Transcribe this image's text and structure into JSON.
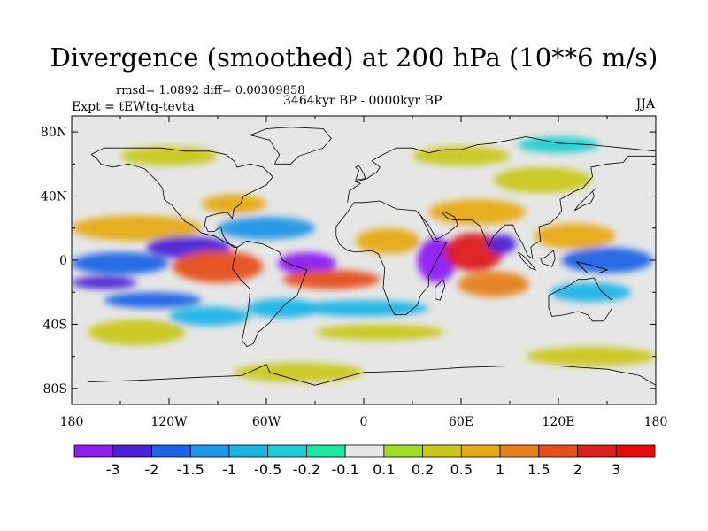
{
  "header": {
    "title": "Divergence (smoothed) at 200 hPa (10**6 m/s)",
    "stats": "rmsd= 1.0892 diff= 0.00309858",
    "experiment": "Expt = tEWtq-tevta",
    "period": "3464kyr BP - 0000kyr BP",
    "season": "JJA"
  },
  "map": {
    "lat_ticks": [
      "80N",
      "40N",
      "0",
      "40S",
      "80S"
    ],
    "lon_ticks": [
      "180",
      "120W",
      "60W",
      "0",
      "60E",
      "120E",
      "180"
    ],
    "background_color": "#e6e6e6"
  },
  "colorbar": {
    "labels": [
      "-3",
      "-2",
      "-1.5",
      "-1",
      "-0.5",
      "-0.2",
      "-0.1",
      "0.1",
      "0.2",
      "0.5",
      "1",
      "1.5",
      "2",
      "3"
    ],
    "colors": [
      "#8d1eee",
      "#4c21d6",
      "#1e64e6",
      "#1e96e6",
      "#1eb4e6",
      "#1ecdd2",
      "#1ee6a0",
      "#e6e6e6",
      "#a0dc28",
      "#c8c81e",
      "#e6aa14",
      "#e6821e",
      "#e6501e",
      "#dc1e1e",
      "#e60a0a"
    ]
  },
  "blobs": [
    {
      "lon": -150,
      "lat": -2,
      "rx": 30,
      "ry": 7,
      "v": -1.6
    },
    {
      "lon": -140,
      "lat": 20,
      "rx": 40,
      "ry": 8,
      "v": 0.6
    },
    {
      "lon": -108,
      "lat": 8,
      "rx": 26,
      "ry": 7,
      "v": -2.6
    },
    {
      "lon": -160,
      "lat": -14,
      "rx": 20,
      "ry": 4,
      "v": -2.6
    },
    {
      "lon": -130,
      "lat": -25,
      "rx": 30,
      "ry": 5,
      "v": -1.8
    },
    {
      "lon": -90,
      "lat": -4,
      "rx": 28,
      "ry": 10,
      "v": 1.8
    },
    {
      "lon": -140,
      "lat": -45,
      "rx": 30,
      "ry": 8,
      "v": 0.4
    },
    {
      "lon": -95,
      "lat": -35,
      "rx": 25,
      "ry": 6,
      "v": -0.5
    },
    {
      "lon": -60,
      "lat": 20,
      "rx": 30,
      "ry": 7,
      "v": -1.0
    },
    {
      "lon": -80,
      "lat": 35,
      "rx": 20,
      "ry": 6,
      "v": 0.7
    },
    {
      "lon": -35,
      "lat": -2,
      "rx": 18,
      "ry": 7,
      "v": -3.2
    },
    {
      "lon": -20,
      "lat": -12,
      "rx": 30,
      "ry": 6,
      "v": 1.6
    },
    {
      "lon": -50,
      "lat": -30,
      "rx": 22,
      "ry": 6,
      "v": -0.8
    },
    {
      "lon": 15,
      "lat": 12,
      "rx": 20,
      "ry": 8,
      "v": 0.8
    },
    {
      "lon": 0,
      "lat": -30,
      "rx": 40,
      "ry": 5,
      "v": -0.8
    },
    {
      "lon": 10,
      "lat": -45,
      "rx": 40,
      "ry": 5,
      "v": 0.5
    },
    {
      "lon": 45,
      "lat": 0,
      "rx": 12,
      "ry": 14,
      "v": -3.0
    },
    {
      "lon": 68,
      "lat": 5,
      "rx": 18,
      "ry": 12,
      "v": 2.8
    },
    {
      "lon": 85,
      "lat": 10,
      "rx": 9,
      "ry": 6,
      "v": -2.2
    },
    {
      "lon": 70,
      "lat": 30,
      "rx": 30,
      "ry": 8,
      "v": 1.0
    },
    {
      "lon": 80,
      "lat": -15,
      "rx": 22,
      "ry": 8,
      "v": 1.2
    },
    {
      "lon": 150,
      "lat": 0,
      "rx": 28,
      "ry": 8,
      "v": -1.8
    },
    {
      "lon": 130,
      "lat": 15,
      "rx": 25,
      "ry": 8,
      "v": 0.9
    },
    {
      "lon": 140,
      "lat": -20,
      "rx": 25,
      "ry": 6,
      "v": -0.8
    },
    {
      "lon": 110,
      "lat": 50,
      "rx": 30,
      "ry": 8,
      "v": 0.4
    },
    {
      "lon": 60,
      "lat": 65,
      "rx": 30,
      "ry": 6,
      "v": 0.3
    },
    {
      "lon": -120,
      "lat": 65,
      "rx": 30,
      "ry": 6,
      "v": 0.4
    },
    {
      "lon": 120,
      "lat": 72,
      "rx": 25,
      "ry": 5,
      "v": -0.4
    },
    {
      "lon": -40,
      "lat": -70,
      "rx": 40,
      "ry": 6,
      "v": 0.4
    },
    {
      "lon": 140,
      "lat": -60,
      "rx": 40,
      "ry": 6,
      "v": 0.3
    }
  ],
  "coastlines": [
    [
      [
        -168,
        66
      ],
      [
        -160,
        70
      ],
      [
        -140,
        70
      ],
      [
        -125,
        70
      ],
      [
        -110,
        68
      ],
      [
        -95,
        68
      ],
      [
        -85,
        66
      ],
      [
        -80,
        62
      ],
      [
        -78,
        58
      ],
      [
        -70,
        60
      ],
      [
        -62,
        58
      ],
      [
        -56,
        52
      ],
      [
        -60,
        47
      ],
      [
        -66,
        44
      ],
      [
        -70,
        42
      ],
      [
        -74,
        40
      ],
      [
        -76,
        35
      ],
      [
        -80,
        32
      ],
      [
        -81,
        26
      ],
      [
        -84,
        30
      ],
      [
        -90,
        29
      ],
      [
        -97,
        27
      ],
      [
        -98,
        22
      ],
      [
        -96,
        18
      ],
      [
        -92,
        18
      ],
      [
        -88,
        21
      ],
      [
        -87,
        16
      ],
      [
        -84,
        11
      ],
      [
        -80,
        8
      ],
      [
        -78,
        8
      ],
      [
        -85,
        11
      ],
      [
        -92,
        15
      ],
      [
        -100,
        17
      ],
      [
        -106,
        22
      ],
      [
        -110,
        24
      ],
      [
        -115,
        30
      ],
      [
        -118,
        34
      ],
      [
        -123,
        38
      ],
      [
        -124,
        45
      ],
      [
        -128,
        50
      ],
      [
        -135,
        57
      ],
      [
        -145,
        60
      ],
      [
        -155,
        58
      ],
      [
        -162,
        60
      ],
      [
        -165,
        64
      ],
      [
        -168,
        66
      ]
    ],
    [
      [
        -78,
        8
      ],
      [
        -72,
        12
      ],
      [
        -62,
        10
      ],
      [
        -52,
        5
      ],
      [
        -50,
        0
      ],
      [
        -44,
        -3
      ],
      [
        -35,
        -6
      ],
      [
        -38,
        -14
      ],
      [
        -41,
        -22
      ],
      [
        -48,
        -27
      ],
      [
        -55,
        -35
      ],
      [
        -58,
        -39
      ],
      [
        -65,
        -45
      ],
      [
        -68,
        -52
      ],
      [
        -72,
        -54
      ],
      [
        -75,
        -50
      ],
      [
        -73,
        -40
      ],
      [
        -71,
        -30
      ],
      [
        -70,
        -18
      ],
      [
        -76,
        -12
      ],
      [
        -81,
        -5
      ],
      [
        -80,
        0
      ],
      [
        -78,
        8
      ]
    ],
    [
      [
        -17,
        15
      ],
      [
        -17,
        21
      ],
      [
        -10,
        30
      ],
      [
        -6,
        36
      ],
      [
        0,
        36
      ],
      [
        10,
        37
      ],
      [
        20,
        32
      ],
      [
        32,
        31
      ],
      [
        35,
        28
      ],
      [
        43,
        12
      ],
      [
        51,
        11
      ],
      [
        45,
        0
      ],
      [
        40,
        -10
      ],
      [
        40,
        -16
      ],
      [
        35,
        -22
      ],
      [
        33,
        -28
      ],
      [
        26,
        -34
      ],
      [
        19,
        -34
      ],
      [
        16,
        -28
      ],
      [
        12,
        -17
      ],
      [
        13,
        -5
      ],
      [
        9,
        4
      ],
      [
        5,
        6
      ],
      [
        -5,
        5
      ],
      [
        -10,
        6
      ],
      [
        -15,
        10
      ],
      [
        -17,
        15
      ]
    ],
    [
      [
        -10,
        36
      ],
      [
        -9,
        43
      ],
      [
        -2,
        48
      ],
      [
        -5,
        49
      ],
      [
        2,
        51
      ],
      [
        5,
        53
      ],
      [
        8,
        55
      ],
      [
        10,
        58
      ],
      [
        5,
        62
      ],
      [
        12,
        66
      ],
      [
        20,
        70
      ],
      [
        30,
        70
      ],
      [
        40,
        67
      ],
      [
        50,
        69
      ],
      [
        60,
        69
      ],
      [
        70,
        72
      ],
      [
        80,
        73
      ],
      [
        100,
        77
      ],
      [
        120,
        73
      ],
      [
        140,
        72
      ],
      [
        160,
        70
      ],
      [
        180,
        68
      ]
    ],
    [
      [
        35,
        28
      ],
      [
        40,
        22
      ],
      [
        45,
        13
      ],
      [
        52,
        17
      ],
      [
        58,
        22
      ],
      [
        56,
        27
      ],
      [
        50,
        30
      ],
      [
        48,
        30
      ],
      [
        52,
        26
      ],
      [
        56,
        25
      ],
      [
        60,
        25
      ],
      [
        67,
        25
      ],
      [
        72,
        21
      ],
      [
        77,
        8
      ],
      [
        80,
        15
      ],
      [
        87,
        22
      ],
      [
        92,
        22
      ],
      [
        94,
        17
      ],
      [
        98,
        10
      ],
      [
        101,
        3
      ],
      [
        104,
        1
      ],
      [
        103,
        8
      ],
      [
        105,
        10
      ],
      [
        109,
        12
      ],
      [
        108,
        21
      ],
      [
        115,
        23
      ],
      [
        120,
        28
      ],
      [
        122,
        31
      ],
      [
        121,
        38
      ],
      [
        125,
        40
      ],
      [
        130,
        43
      ],
      [
        135,
        45
      ],
      [
        141,
        52
      ],
      [
        140,
        58
      ],
      [
        150,
        60
      ],
      [
        160,
        61
      ],
      [
        163,
        65
      ],
      [
        180,
        65
      ]
    ],
    [
      [
        -55,
        60
      ],
      [
        -45,
        60
      ],
      [
        -40,
        65
      ],
      [
        -25,
        70
      ],
      [
        -20,
        76
      ],
      [
        -25,
        82
      ],
      [
        -45,
        83
      ],
      [
        -60,
        82
      ],
      [
        -70,
        78
      ],
      [
        -58,
        75
      ],
      [
        -55,
        70
      ],
      [
        -52,
        66
      ],
      [
        -55,
        60
      ]
    ],
    [
      [
        114,
        -22
      ],
      [
        114,
        -30
      ],
      [
        116,
        -35
      ],
      [
        124,
        -34
      ],
      [
        132,
        -32
      ],
      [
        138,
        -34
      ],
      [
        141,
        -38
      ],
      [
        148,
        -38
      ],
      [
        153,
        -30
      ],
      [
        153,
        -25
      ],
      [
        146,
        -19
      ],
      [
        142,
        -11
      ],
      [
        137,
        -12
      ],
      [
        132,
        -12
      ],
      [
        128,
        -15
      ],
      [
        122,
        -18
      ],
      [
        114,
        -22
      ]
    ],
    [
      [
        95,
        5
      ],
      [
        98,
        3
      ],
      [
        102,
        -1
      ],
      [
        106,
        -6
      ],
      [
        103,
        -5
      ],
      [
        98,
        0
      ],
      [
        95,
        5
      ]
    ],
    [
      [
        109,
        1
      ],
      [
        110,
        -2
      ],
      [
        116,
        -4
      ],
      [
        118,
        1
      ],
      [
        117,
        6
      ],
      [
        112,
        2
      ],
      [
        109,
        1
      ]
    ],
    [
      [
        131,
        -1
      ],
      [
        140,
        -3
      ],
      [
        150,
        -6
      ],
      [
        145,
        -8
      ],
      [
        138,
        -8
      ],
      [
        131,
        -1
      ]
    ],
    [
      [
        130,
        31
      ],
      [
        135,
        34
      ],
      [
        140,
        36
      ],
      [
        142,
        40
      ],
      [
        141,
        43
      ],
      [
        143,
        45
      ],
      [
        138,
        40
      ],
      [
        132,
        34
      ],
      [
        130,
        31
      ]
    ],
    [
      [
        49,
        -12
      ],
      [
        50,
        -16
      ],
      [
        47,
        -25
      ],
      [
        44,
        -24
      ],
      [
        44,
        -17
      ],
      [
        49,
        -12
      ]
    ],
    [
      [
        -5,
        50
      ],
      [
        -3,
        56
      ],
      [
        -5,
        58
      ],
      [
        -3,
        59
      ],
      [
        0,
        54
      ],
      [
        1,
        51
      ],
      [
        -5,
        50
      ]
    ],
    [
      [
        -170,
        -76
      ],
      [
        -140,
        -75
      ],
      [
        -100,
        -73
      ],
      [
        -75,
        -72
      ],
      [
        -60,
        -65
      ],
      [
        -58,
        -70
      ],
      [
        -30,
        -78
      ],
      [
        0,
        -70
      ],
      [
        30,
        -69
      ],
      [
        60,
        -67
      ],
      [
        90,
        -66
      ],
      [
        120,
        -66
      ],
      [
        150,
        -68
      ],
      [
        170,
        -72
      ],
      [
        180,
        -78
      ]
    ]
  ]
}
